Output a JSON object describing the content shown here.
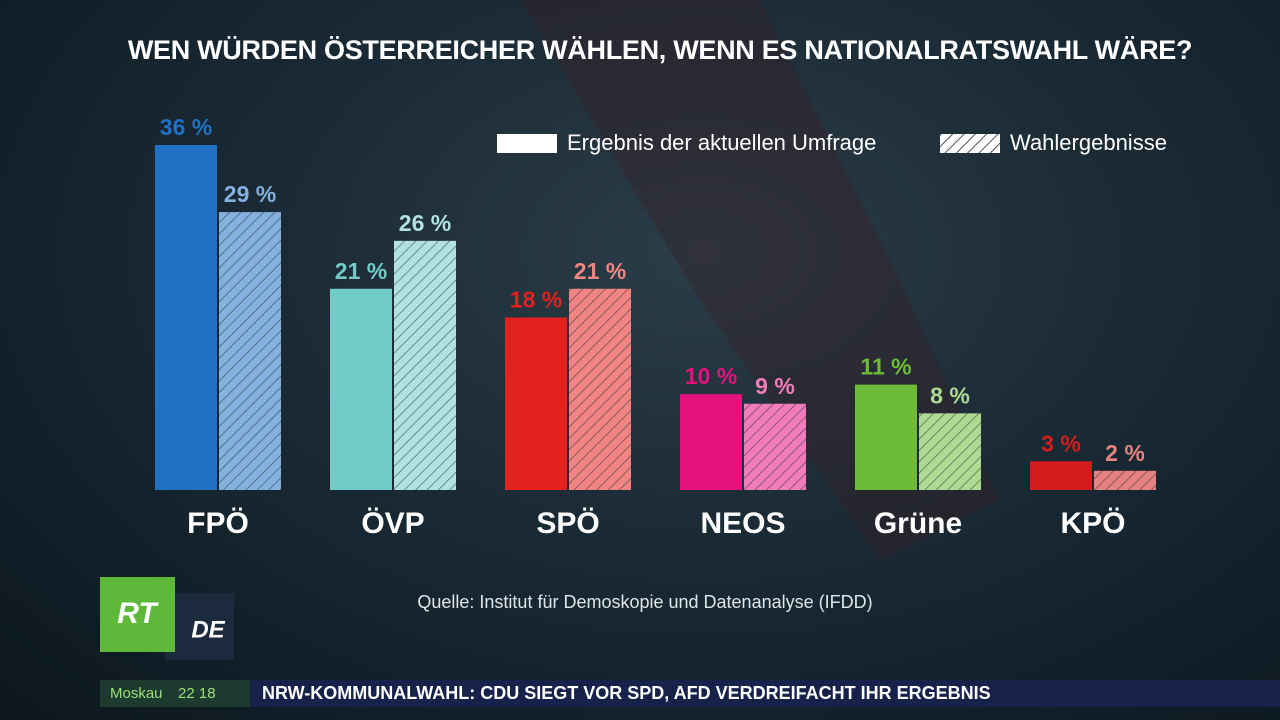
{
  "chart_data": {
    "type": "bar",
    "title": "WEN WÜRDEN ÖSTERREICHER WÄHLEN, WENN ES NATIONALRATSWAHL WÄRE?",
    "categories": [
      "FPÖ",
      "ÖVP",
      "SPÖ",
      "NEOS",
      "Grüne",
      "KPÖ"
    ],
    "colors": [
      "#1f72c4",
      "#72cbc6",
      "#e3211f",
      "#e4127f",
      "#6dbb38",
      "#d41c1c"
    ],
    "series": [
      {
        "name": "Ergebnis der aktuellen Umfrage",
        "style": "solid",
        "values": [
          36,
          21,
          18,
          10,
          11,
          3
        ],
        "value_labels": [
          "36 %",
          "21 %",
          "18 %",
          "10 %",
          "11 %",
          "3 %"
        ]
      },
      {
        "name": "Wahlergebnisse",
        "style": "hatched",
        "values": [
          29,
          26,
          21,
          9,
          8,
          2
        ],
        "value_labels": [
          "29 %",
          "26 %",
          "21 %",
          "9 %",
          "8 %",
          "2 %"
        ]
      }
    ],
    "source": "Quelle: Institut für Demoskopie und Datenanalyse (IFDD)"
  },
  "logo": {
    "primary": "RT",
    "secondary": "DE"
  },
  "ticker": {
    "city": "Moskau",
    "time": "22 18",
    "headline": "NRW-KOMMUNALWAHL: CDU SIEGT VOR SPD, AFD VERDREIFACHT IHR ERGEBNIS"
  }
}
